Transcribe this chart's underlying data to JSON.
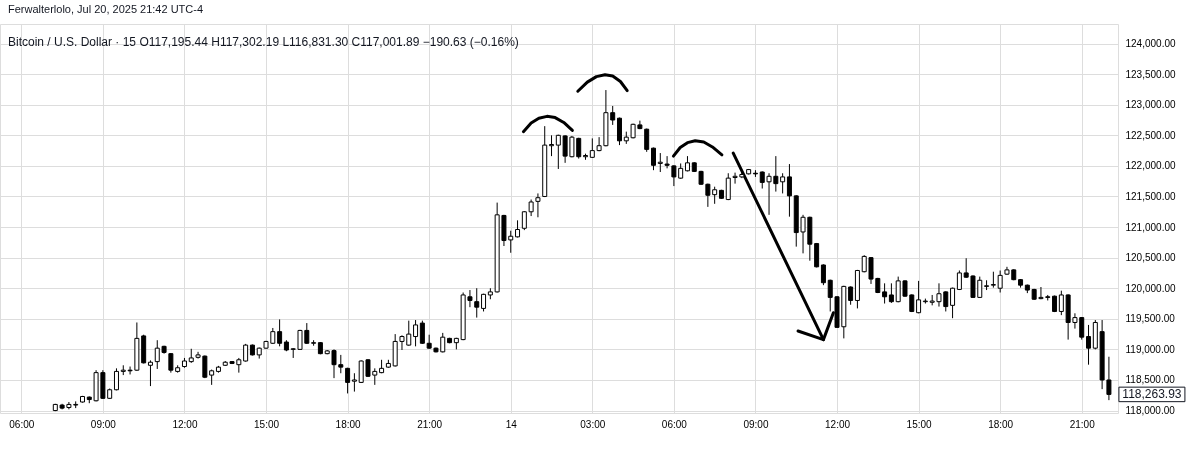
{
  "chart_data": {
    "type": "candlestick",
    "title": "Bitcoin / U.S. Dollar · 15  O117,195.44 H117,302.19 L116,831.30 C117,001.89 −190.63 (−0.16%)",
    "annotations": [
      "Ferwalterlolo, Jul 20, 2025 21:42 UTC-4",
      {
        "text": "118,263.93",
        "x": "2025-07-14T22:00",
        "y": 118263.93
      }
    ],
    "x": [
      "2025-07-13T07:15",
      "2025-07-13T07:30",
      "2025-07-13T07:45",
      "2025-07-13T08:00",
      "2025-07-13T08:15",
      "2025-07-13T08:30",
      "2025-07-13T08:45",
      "2025-07-13T09:00",
      "2025-07-13T09:15",
      "2025-07-13T09:30",
      "2025-07-13T09:45",
      "2025-07-13T10:00",
      "2025-07-13T10:15",
      "2025-07-13T10:30",
      "2025-07-13T10:45",
      "2025-07-13T11:00",
      "2025-07-13T11:15",
      "2025-07-13T11:30",
      "2025-07-13T11:45",
      "2025-07-13T12:00",
      "2025-07-13T12:15",
      "2025-07-13T12:30",
      "2025-07-13T12:45",
      "2025-07-13T13:00",
      "2025-07-13T13:15",
      "2025-07-13T13:30",
      "2025-07-13T13:45",
      "2025-07-13T14:00",
      "2025-07-13T14:15",
      "2025-07-13T14:30",
      "2025-07-13T14:45",
      "2025-07-13T15:00",
      "2025-07-13T15:15",
      "2025-07-13T15:30",
      "2025-07-13T15:45",
      "2025-07-13T16:00",
      "2025-07-13T16:15",
      "2025-07-13T16:30",
      "2025-07-13T16:45",
      "2025-07-13T17:00",
      "2025-07-13T17:15",
      "2025-07-13T17:30",
      "2025-07-13T17:45",
      "2025-07-13T18:00",
      "2025-07-13T18:15",
      "2025-07-13T18:30",
      "2025-07-13T18:45",
      "2025-07-13T19:00",
      "2025-07-13T19:15",
      "2025-07-13T19:30",
      "2025-07-13T19:45",
      "2025-07-13T20:00",
      "2025-07-13T20:15",
      "2025-07-13T20:30",
      "2025-07-13T20:45",
      "2025-07-13T21:00",
      "2025-07-13T21:15",
      "2025-07-13T21:30",
      "2025-07-13T21:45",
      "2025-07-13T22:00",
      "2025-07-13T22:15",
      "2025-07-13T22:30",
      "2025-07-13T22:45",
      "2025-07-13T23:00",
      "2025-07-13T23:15",
      "2025-07-13T23:30",
      "2025-07-13T23:45",
      "2025-07-14T00:00",
      "2025-07-14T00:15",
      "2025-07-14T00:30",
      "2025-07-14T00:45",
      "2025-07-14T01:00",
      "2025-07-14T01:15",
      "2025-07-14T01:30",
      "2025-07-14T01:45",
      "2025-07-14T02:00",
      "2025-07-14T02:15",
      "2025-07-14T02:30",
      "2025-07-14T02:45",
      "2025-07-14T03:00",
      "2025-07-14T03:15",
      "2025-07-14T03:30",
      "2025-07-14T03:45",
      "2025-07-14T04:00",
      "2025-07-14T04:15",
      "2025-07-14T04:30",
      "2025-07-14T04:45",
      "2025-07-14T05:00",
      "2025-07-14T05:15",
      "2025-07-14T05:30",
      "2025-07-14T05:45",
      "2025-07-14T06:00",
      "2025-07-14T06:15",
      "2025-07-14T06:30",
      "2025-07-14T06:45",
      "2025-07-14T07:00",
      "2025-07-14T07:15",
      "2025-07-14T07:30",
      "2025-07-14T07:45",
      "2025-07-14T08:00",
      "2025-07-14T08:15",
      "2025-07-14T08:30",
      "2025-07-14T08:45",
      "2025-07-14T09:00",
      "2025-07-14T09:15",
      "2025-07-14T09:30",
      "2025-07-14T09:45",
      "2025-07-14T10:00",
      "2025-07-14T10:15",
      "2025-07-14T10:30",
      "2025-07-14T10:45",
      "2025-07-14T11:00",
      "2025-07-14T11:15",
      "2025-07-14T11:30",
      "2025-07-14T11:45",
      "2025-07-14T12:00",
      "2025-07-14T12:15",
      "2025-07-14T12:30",
      "2025-07-14T12:45",
      "2025-07-14T13:00",
      "2025-07-14T13:15",
      "2025-07-14T13:30",
      "2025-07-14T13:45",
      "2025-07-14T14:00",
      "2025-07-14T14:15",
      "2025-07-14T14:30",
      "2025-07-14T14:45",
      "2025-07-14T15:00",
      "2025-07-14T15:15",
      "2025-07-14T15:30",
      "2025-07-14T15:45",
      "2025-07-14T16:00",
      "2025-07-14T16:15",
      "2025-07-14T16:30",
      "2025-07-14T16:45",
      "2025-07-14T17:00",
      "2025-07-14T17:15",
      "2025-07-14T17:30",
      "2025-07-14T17:45",
      "2025-07-14T18:00",
      "2025-07-14T18:15",
      "2025-07-14T18:30",
      "2025-07-14T18:45",
      "2025-07-14T19:00",
      "2025-07-14T19:15",
      "2025-07-14T19:30",
      "2025-07-14T19:45",
      "2025-07-14T20:00",
      "2025-07-14T20:15",
      "2025-07-14T20:30",
      "2025-07-14T20:45",
      "2025-07-14T21:00",
      "2025-07-14T21:15",
      "2025-07-14T21:30",
      "2025-07-14T21:45",
      "2025-07-14T22:00"
    ],
    "ohlc": [
      [
        118000,
        118110,
        117990,
        118100
      ],
      [
        118090,
        118110,
        118020,
        118040
      ],
      [
        118050,
        118140,
        118020,
        118100
      ],
      [
        118090,
        118150,
        118040,
        118100
      ],
      [
        118140,
        118240,
        118130,
        118230
      ],
      [
        118220,
        118230,
        118120,
        118180
      ],
      [
        118160,
        118660,
        118150,
        118620
      ],
      [
        118620,
        118660,
        118190,
        118200
      ],
      [
        118200,
        118360,
        118190,
        118340
      ],
      [
        118340,
        118690,
        118330,
        118640
      ],
      [
        118640,
        118740,
        118580,
        118660
      ],
      [
        118660,
        118720,
        118590,
        118650
      ],
      [
        118660,
        119440,
        118650,
        119180
      ],
      [
        119220,
        119240,
        118770,
        118780
      ],
      [
        118740,
        118820,
        118400,
        118790
      ],
      [
        118800,
        119150,
        118680,
        119020
      ],
      [
        119050,
        119060,
        118930,
        118950
      ],
      [
        118930,
        118940,
        118620,
        118660
      ],
      [
        118640,
        118740,
        118620,
        118700
      ],
      [
        118720,
        118860,
        118700,
        118810
      ],
      [
        118800,
        119010,
        118780,
        118860
      ],
      [
        118870,
        118960,
        118850,
        118910
      ],
      [
        118890,
        118900,
        118530,
        118545
      ],
      [
        118580,
        118670,
        118420,
        118650
      ],
      [
        118640,
        118730,
        118620,
        118710
      ],
      [
        118740,
        118810,
        118730,
        118790
      ],
      [
        118800,
        118810,
        118760,
        118770
      ],
      [
        118750,
        118860,
        118620,
        118830
      ],
      [
        118810,
        119090,
        118800,
        119070
      ],
      [
        119070,
        119080,
        118900,
        118910
      ],
      [
        118910,
        119030,
        118850,
        119020
      ],
      [
        119020,
        119140,
        119010,
        119130
      ],
      [
        119100,
        119350,
        119090,
        119290
      ],
      [
        119290,
        119490,
        119050,
        119100
      ],
      [
        119120,
        119150,
        118970,
        118990
      ],
      [
        119000,
        119020,
        118860,
        119010
      ],
      [
        119000,
        119320,
        118990,
        119310
      ],
      [
        119310,
        119430,
        119090,
        119100
      ],
      [
        119100,
        119150,
        119060,
        119110
      ],
      [
        119110,
        119120,
        118920,
        118930
      ],
      [
        118930,
        118990,
        118920,
        118975
      ],
      [
        118980,
        119000,
        118530,
        118750
      ],
      [
        118750,
        118910,
        118610,
        118710
      ],
      [
        118690,
        118700,
        118280,
        118460
      ],
      [
        118480,
        118610,
        118310,
        118500
      ],
      [
        118460,
        118820,
        118450,
        118810
      ],
      [
        118830,
        118840,
        118550,
        118560
      ],
      [
        118580,
        118690,
        118420,
        118640
      ],
      [
        118620,
        118830,
        118610,
        118690
      ],
      [
        118710,
        118830,
        118700,
        118770
      ],
      [
        118730,
        119250,
        118720,
        119130
      ],
      [
        119130,
        119230,
        118990,
        119210
      ],
      [
        119070,
        119470,
        119060,
        119250
      ],
      [
        119210,
        119480,
        119050,
        119400
      ],
      [
        119430,
        119470,
        119090,
        119100
      ],
      [
        119100,
        119240,
        119010,
        119020
      ],
      [
        119020,
        119030,
        118950,
        118960
      ],
      [
        118960,
        119270,
        118950,
        119200
      ],
      [
        119180,
        119190,
        119100,
        119110
      ],
      [
        119110,
        119190,
        119000,
        119180
      ],
      [
        119160,
        119930,
        119150,
        119890
      ],
      [
        119860,
        119970,
        119690,
        119800
      ],
      [
        119780,
        120000,
        119520,
        119690
      ],
      [
        119670,
        119910,
        119620,
        119900
      ],
      [
        119890,
        120000,
        119820,
        119940
      ],
      [
        119940,
        121400,
        119930,
        121200
      ],
      [
        121190,
        121200,
        120690,
        120780
      ],
      [
        120790,
        120940,
        120580,
        120850
      ],
      [
        120840,
        121110,
        120830,
        120960
      ],
      [
        120980,
        121260,
        120950,
        121250
      ],
      [
        121250,
        121450,
        121180,
        121410
      ],
      [
        121420,
        121550,
        121160,
        121480
      ],
      [
        121500,
        122650,
        121490,
        122340
      ],
      [
        122330,
        122500,
        122160,
        122350
      ],
      [
        122340,
        122510,
        121950,
        122500
      ],
      [
        122490,
        122500,
        122050,
        122160
      ],
      [
        122150,
        122490,
        122140,
        122470
      ],
      [
        122450,
        122460,
        122120,
        122150
      ],
      [
        122150,
        122200,
        122100,
        122170
      ],
      [
        122140,
        122450,
        122130,
        122250
      ],
      [
        122250,
        122470,
        122240,
        122330
      ],
      [
        122330,
        123240,
        122320,
        122870
      ],
      [
        122870,
        122980,
        122670,
        122750
      ],
      [
        122780,
        122790,
        122340,
        122410
      ],
      [
        122410,
        122560,
        122360,
        122470
      ],
      [
        122460,
        122690,
        122450,
        122680
      ],
      [
        122670,
        122740,
        122600,
        122610
      ],
      [
        122600,
        122610,
        122230,
        122270
      ],
      [
        122290,
        122300,
        121930,
        122010
      ],
      [
        122040,
        122210,
        121900,
        122060
      ],
      [
        122030,
        122160,
        121960,
        122010
      ],
      [
        122000,
        122010,
        121670,
        121820
      ],
      [
        121800,
        122040,
        121790,
        121960
      ],
      [
        121920,
        122160,
        121910,
        122050
      ],
      [
        122050,
        122060,
        121900,
        121910
      ],
      [
        121910,
        121920,
        121690,
        121700
      ],
      [
        121700,
        121710,
        121330,
        121520
      ],
      [
        121530,
        121660,
        121380,
        121610
      ],
      [
        121600,
        121610,
        121460,
        121470
      ],
      [
        121450,
        121880,
        121440,
        121800
      ],
      [
        121810,
        121890,
        121710,
        121830
      ],
      [
        121820,
        121900,
        121800,
        121860
      ],
      [
        121870,
        121950,
        121860,
        121940
      ],
      [
        121880,
        121930,
        121820,
        121870
      ],
      [
        121900,
        121910,
        121630,
        121730
      ],
      [
        121740,
        121880,
        121200,
        121830
      ],
      [
        121830,
        122160,
        121580,
        121710
      ],
      [
        121740,
        121880,
        121550,
        121820
      ],
      [
        121820,
        122030,
        121170,
        121510
      ],
      [
        121510,
        121520,
        120680,
        120910
      ],
      [
        120920,
        121200,
        120570,
        121160
      ],
      [
        121160,
        121170,
        120450,
        120720
      ],
      [
        120730,
        120740,
        120340,
        120350
      ],
      [
        120380,
        120390,
        120050,
        120090
      ],
      [
        120130,
        120140,
        119620,
        119850
      ],
      [
        119860,
        119870,
        119350,
        119360
      ],
      [
        119370,
        120040,
        119180,
        120030
      ],
      [
        120020,
        120030,
        119730,
        119800
      ],
      [
        119800,
        120300,
        119670,
        120290
      ],
      [
        120270,
        120540,
        120260,
        120520
      ],
      [
        120500,
        120510,
        120070,
        120150
      ],
      [
        120160,
        120170,
        119920,
        119930
      ],
      [
        119940,
        120080,
        119750,
        119860
      ],
      [
        119890,
        120080,
        119760,
        119780
      ],
      [
        119780,
        120190,
        119770,
        120120
      ],
      [
        120120,
        120130,
        119860,
        119870
      ],
      [
        119890,
        119900,
        119610,
        119620
      ],
      [
        119600,
        120120,
        119590,
        119810
      ],
      [
        119780,
        119830,
        119750,
        119790
      ],
      [
        119770,
        119890,
        119720,
        119790
      ],
      [
        119780,
        120080,
        119700,
        119910
      ],
      [
        119940,
        119950,
        119620,
        119700
      ],
      [
        119720,
        120010,
        119510,
        120000
      ],
      [
        119980,
        120290,
        119970,
        120250
      ],
      [
        120250,
        120490,
        120170,
        120180
      ],
      [
        120200,
        120210,
        119840,
        119850
      ],
      [
        119850,
        120190,
        119840,
        120130
      ],
      [
        120030,
        120130,
        119970,
        120040
      ],
      [
        120050,
        120270,
        120010,
        120060
      ],
      [
        120000,
        120290,
        119930,
        120210
      ],
      [
        120230,
        120350,
        120220,
        120300
      ],
      [
        120300,
        120310,
        120130,
        120140
      ],
      [
        120140,
        120150,
        120010,
        120050
      ],
      [
        120050,
        120060,
        119920,
        119970
      ],
      [
        119980,
        119990,
        119810,
        119820
      ],
      [
        119830,
        120020,
        119820,
        119850
      ],
      [
        119860,
        119890,
        119800,
        119850
      ],
      [
        119870,
        119880,
        119610,
        119620
      ],
      [
        119620,
        119960,
        119560,
        119890
      ],
      [
        119890,
        119900,
        119160,
        119440
      ],
      [
        119440,
        119590,
        119340,
        119520
      ],
      [
        119520,
        119530,
        119160,
        119200
      ],
      [
        119210,
        119400,
        118750,
        119020
      ],
      [
        119020,
        119480,
        119000,
        119440
      ],
      [
        119290,
        119480,
        118350,
        118500
      ],
      [
        118500,
        118880,
        118170,
        118263.93
      ]
    ],
    "color": "#000000",
    "colors": [
      "#ffffff",
      "#000000",
      "#ffffff",
      "#ffffff",
      "#ffffff",
      "#000000",
      "#ffffff",
      "#000000",
      "#ffffff",
      "#ffffff",
      "#ffffff",
      "#000000",
      "#ffffff",
      "#000000",
      "#ffffff",
      "#ffffff",
      "#000000",
      "#000000",
      "#ffffff",
      "#ffffff",
      "#ffffff",
      "#ffffff",
      "#000000",
      "#ffffff",
      "#ffffff",
      "#ffffff",
      "#000000",
      "#ffffff",
      "#ffffff",
      "#000000",
      "#ffffff",
      "#ffffff",
      "#ffffff",
      "#000000",
      "#000000",
      "#ffffff",
      "#ffffff",
      "#000000",
      "#ffffff",
      "#000000",
      "#ffffff",
      "#000000",
      "#000000",
      "#000000",
      "#ffffff",
      "#ffffff",
      "#000000",
      "#ffffff",
      "#ffffff",
      "#ffffff",
      "#ffffff",
      "#ffffff",
      "#ffffff",
      "#ffffff",
      "#000000",
      "#000000",
      "#000000",
      "#ffffff",
      "#000000",
      "#ffffff",
      "#ffffff",
      "#000000",
      "#000000",
      "#ffffff",
      "#ffffff",
      "#ffffff",
      "#000000",
      "#ffffff",
      "#ffffff",
      "#ffffff",
      "#ffffff",
      "#ffffff",
      "#ffffff",
      "#ffffff",
      "#ffffff",
      "#000000",
      "#ffffff",
      "#000000",
      "#ffffff",
      "#ffffff",
      "#ffffff",
      "#ffffff",
      "#000000",
      "#000000",
      "#ffffff",
      "#ffffff",
      "#000000",
      "#000000",
      "#000000",
      "#ffffff",
      "#000000",
      "#000000",
      "#ffffff",
      "#ffffff",
      "#000000",
      "#000000",
      "#000000",
      "#ffffff",
      "#000000",
      "#ffffff",
      "#ffffff",
      "#ffffff",
      "#ffffff",
      "#000000",
      "#000000",
      "#ffffff",
      "#000000",
      "#ffffff",
      "#000000",
      "#000000",
      "#ffffff",
      "#000000",
      "#000000",
      "#000000",
      "#000000",
      "#000000",
      "#ffffff",
      "#000000",
      "#ffffff",
      "#ffffff",
      "#000000",
      "#000000",
      "#000000",
      "#000000",
      "#ffffff",
      "#000000",
      "#000000",
      "#ffffff",
      "#ffffff",
      "#ffffff",
      "#ffffff",
      "#000000",
      "#ffffff",
      "#ffffff",
      "#000000",
      "#000000",
      "#ffffff",
      "#ffffff",
      "#ffffff",
      "#ffffff",
      "#ffffff",
      "#000000",
      "#000000",
      "#000000",
      "#000000",
      "#ffffff",
      "#000000",
      "#000000",
      "#ffffff",
      "#000000",
      "#ffffff",
      "#000000",
      "#000000",
      "#ffffff",
      "#000000",
      "#000000"
    ],
    "series": [
      {
        "type": "line",
        "color": "#000000",
        "x": [
          "2025-07-14T00:28",
          "2025-07-14T00:45",
          "2025-07-14T01:02",
          "2025-07-14T01:20",
          "2025-07-14T01:38",
          "2025-07-14T01:57",
          "2025-07-14T02:16"
        ],
        "values": [
          122560,
          122700,
          122780,
          122810,
          122790,
          122710,
          122580
        ]
      },
      {
        "type": "line",
        "color": "#000000",
        "x": [
          "2025-07-14T02:28",
          "2025-07-14T02:49",
          "2025-07-14T03:09",
          "2025-07-14T03:28",
          "2025-07-14T03:45",
          "2025-07-14T04:02",
          "2025-07-14T04:17"
        ],
        "values": [
          123220,
          123370,
          123460,
          123490,
          123470,
          123380,
          123230
        ]
      },
      {
        "type": "line",
        "color": "#000000",
        "x": [
          "2025-07-14T05:59",
          "2025-07-14T06:14",
          "2025-07-14T06:30",
          "2025-07-14T06:47",
          "2025-07-14T07:06",
          "2025-07-14T07:25",
          "2025-07-14T07:46"
        ],
        "values": [
          122160,
          122300,
          122380,
          122410,
          122390,
          122310,
          122180
        ]
      },
      {
        "type": "line",
        "color": "#000000",
        "x": [
          "2025-07-14T08:11",
          "2025-07-14T11:30"
        ],
        "values": [
          122210,
          119160
        ]
      },
      {
        "type": "line",
        "color": "#000000",
        "x": [
          "2025-07-14T10:34",
          "2025-07-14T11:30",
          "2025-07-14T11:52"
        ],
        "values": [
          119300,
          119160,
          119600
        ]
      }
    ],
    "xlim": [
      "2025-07-13T05:24",
      "2025-07-14T22:09"
    ],
    "ylim": [
      117960,
      124320
    ],
    "xticks": [
      {
        "value": "2025-07-13T06:00",
        "label": "06:00"
      },
      {
        "value": "2025-07-13T09:00",
        "label": "09:00"
      },
      {
        "value": "2025-07-13T12:00",
        "label": "12:00"
      },
      {
        "value": "2025-07-13T15:00",
        "label": "15:00"
      },
      {
        "value": "2025-07-13T18:00",
        "label": "18:00"
      },
      {
        "value": "2025-07-13T21:00",
        "label": "21:00"
      },
      {
        "value": "2025-07-14T00:00",
        "label": "14"
      },
      {
        "value": "2025-07-14T03:00",
        "label": "03:00"
      },
      {
        "value": "2025-07-14T06:00",
        "label": "06:00"
      },
      {
        "value": "2025-07-14T09:00",
        "label": "09:00"
      },
      {
        "value": "2025-07-14T12:00",
        "label": "12:00"
      },
      {
        "value": "2025-07-14T15:00",
        "label": "15:00"
      },
      {
        "value": "2025-07-14T18:00",
        "label": "18:00"
      },
      {
        "value": "2025-07-14T21:00",
        "label": "21:00"
      }
    ],
    "yticks": [
      {
        "value": 118000,
        "label": "118,000.00"
      },
      {
        "value": 118500,
        "label": "118,500.00"
      },
      {
        "value": 119000,
        "label": "119,000.00"
      },
      {
        "value": 119500,
        "label": "119,500.00"
      },
      {
        "value": 120000,
        "label": "120,000.00"
      },
      {
        "value": 120500,
        "label": "120,500.00"
      },
      {
        "value": 121000,
        "label": "121,000.00"
      },
      {
        "value": 121500,
        "label": "121,500.00"
      },
      {
        "value": 122000,
        "label": "122,000.00"
      },
      {
        "value": 122500,
        "label": "122,500.00"
      },
      {
        "value": 123000,
        "label": "123,000.00"
      },
      {
        "value": 123500,
        "label": "123,500.00"
      },
      {
        "value": 124000,
        "label": "124,000.00"
      }
    ],
    "grid": true
  }
}
